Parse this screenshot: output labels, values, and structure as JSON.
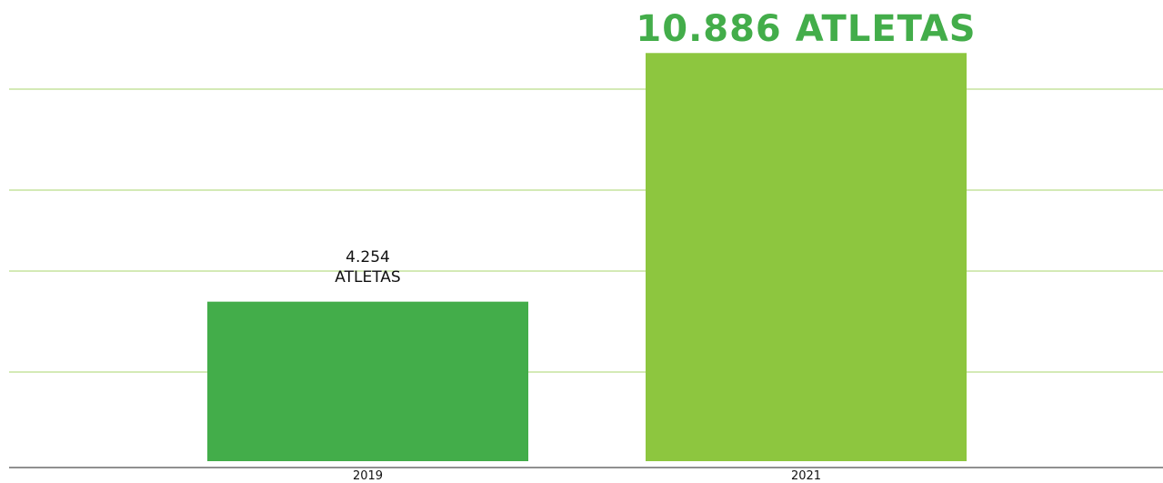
{
  "chart_data": {
    "type": "bar",
    "categories": [
      "2019",
      "2021"
    ],
    "values": [
      4254,
      10886
    ],
    "value_labels": [
      "4.254\nATLETAS",
      "10.886 ATLETAS"
    ],
    "colors": [
      "#43ad4a",
      "#8dc63f"
    ],
    "ylim": [
      0,
      12300
    ]
  }
}
